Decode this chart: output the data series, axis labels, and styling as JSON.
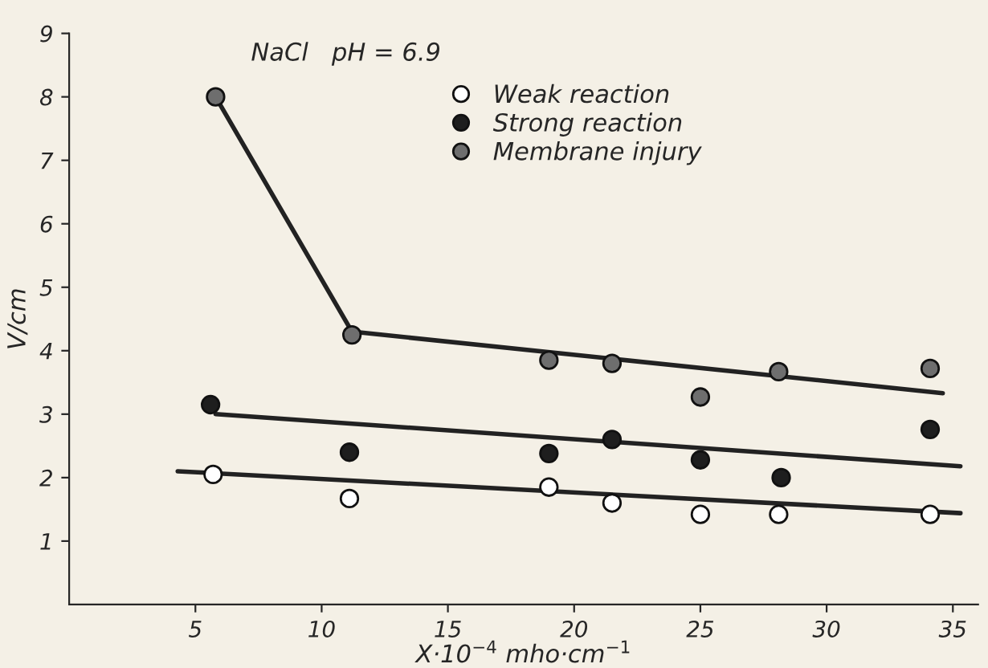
{
  "chart_data": {
    "type": "scatter",
    "xlabel": "X·10$^{−4}$ mho·cm$^{−1}$",
    "ylabel": "V/cm",
    "annotations": [
      "NaCl   pH = 6.9"
    ],
    "xlim": [
      0,
      36
    ],
    "ylim": [
      0,
      9
    ],
    "xticks": [
      5,
      10,
      15,
      20,
      25,
      30,
      35
    ],
    "yticks": [
      1,
      2,
      3,
      4,
      5,
      6,
      7,
      8,
      9
    ],
    "grid": false,
    "legend": "top",
    "series": [
      {
        "name": "Weak reaction",
        "marker": "circle",
        "color": "#ffffff",
        "x": [
          5.7,
          11.1,
          19.0,
          21.5,
          25.0,
          28.1,
          34.1
        ],
        "values": [
          2.05,
          1.67,
          1.85,
          1.6,
          1.42,
          1.42,
          1.42
        ]
      },
      {
        "name": "Strong reaction",
        "marker": "circle",
        "color": "#1e1e1e",
        "x": [
          5.6,
          11.1,
          19.0,
          21.5,
          25.0,
          28.2,
          34.1
        ],
        "values": [
          3.15,
          2.4,
          2.38,
          2.6,
          2.28,
          2.0,
          2.76
        ]
      },
      {
        "name": "Membrane injury",
        "marker": "circle",
        "color": "#6e6e6e",
        "x": [
          5.8,
          11.2,
          19.0,
          21.5,
          25.0,
          28.1,
          34.1
        ],
        "values": [
          8.0,
          4.25,
          3.85,
          3.8,
          3.27,
          3.67,
          3.72
        ]
      },
      {
        "type": "line",
        "color": "#222222",
        "x": [
          4.3,
          35.3
        ],
        "values": [
          2.1,
          1.44
        ]
      },
      {
        "type": "line",
        "color": "#222222",
        "x": [
          5.8,
          35.3
        ],
        "values": [
          3.0,
          2.18
        ]
      },
      {
        "type": "line",
        "color": "#222222",
        "x": [
          5.8,
          11.2,
          34.6
        ],
        "values": [
          8.0,
          4.3,
          3.33
        ]
      }
    ]
  }
}
